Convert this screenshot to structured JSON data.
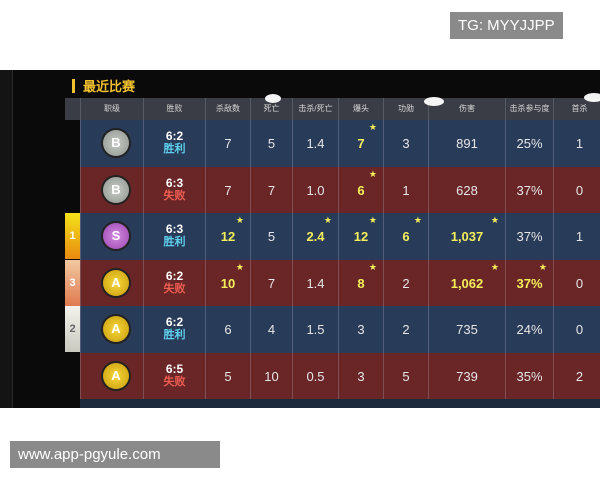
{
  "title": "最近比赛",
  "headers": [
    "职级",
    "胜败",
    "杀敌数",
    "死亡",
    "击杀/死亡",
    "爆头",
    "功勋",
    "伤害",
    "击杀参与度",
    "首杀"
  ],
  "colors": {
    "win_row": "#283b58",
    "loss_row": "#6a2627",
    "win_text": "#5fd0ee",
    "loss_text": "#ee5d52",
    "highlight": "#f4ee5a",
    "title": "#f2c12e"
  },
  "rows": [
    {
      "result": "win",
      "rank_badge": "",
      "tier": "B",
      "score": "6:2",
      "result_label": "胜利",
      "cells": [
        {
          "v": "7"
        },
        {
          "v": "5"
        },
        {
          "v": "1.4"
        },
        {
          "v": "7",
          "hl": true,
          "star": true
        },
        {
          "v": "3"
        },
        {
          "v": "891"
        },
        {
          "v": "25%"
        },
        {
          "v": "1"
        }
      ]
    },
    {
      "result": "loss",
      "rank_badge": "",
      "tier": "B",
      "score": "6:3",
      "result_label": "失败",
      "cells": [
        {
          "v": "7"
        },
        {
          "v": "7"
        },
        {
          "v": "1.0"
        },
        {
          "v": "6",
          "hl": true,
          "star": true
        },
        {
          "v": "1"
        },
        {
          "v": "628"
        },
        {
          "v": "37%"
        },
        {
          "v": "0"
        }
      ]
    },
    {
      "result": "win",
      "rank_badge": "1",
      "tier": "S",
      "score": "6:3",
      "result_label": "胜利",
      "cells": [
        {
          "v": "12",
          "hl": true,
          "star": true
        },
        {
          "v": "5"
        },
        {
          "v": "2.4",
          "hl": true,
          "star": true
        },
        {
          "v": "12",
          "hl": true,
          "star": true
        },
        {
          "v": "6",
          "hl": true,
          "star": true
        },
        {
          "v": "1,037",
          "hl": true,
          "star": true
        },
        {
          "v": "37%"
        },
        {
          "v": "1"
        }
      ]
    },
    {
      "result": "loss",
      "rank_badge": "3",
      "tier": "A",
      "score": "6:2",
      "result_label": "失败",
      "cells": [
        {
          "v": "10",
          "hl": true,
          "star": true
        },
        {
          "v": "7"
        },
        {
          "v": "1.4"
        },
        {
          "v": "8",
          "hl": true,
          "star": true
        },
        {
          "v": "2"
        },
        {
          "v": "1,062",
          "hl": true,
          "star": true
        },
        {
          "v": "37%",
          "hl": true,
          "star": true
        },
        {
          "v": "0"
        }
      ]
    },
    {
      "result": "win",
      "rank_badge": "2",
      "tier": "A",
      "score": "6:2",
      "result_label": "胜利",
      "cells": [
        {
          "v": "6"
        },
        {
          "v": "4"
        },
        {
          "v": "1.5"
        },
        {
          "v": "3"
        },
        {
          "v": "2"
        },
        {
          "v": "735"
        },
        {
          "v": "24%"
        },
        {
          "v": "0"
        }
      ]
    },
    {
      "result": "loss",
      "rank_badge": "",
      "tier": "A",
      "score": "6:5",
      "result_label": "失败",
      "cells": [
        {
          "v": "5"
        },
        {
          "v": "10"
        },
        {
          "v": "0.5"
        },
        {
          "v": "3"
        },
        {
          "v": "5"
        },
        {
          "v": "739"
        },
        {
          "v": "35%"
        },
        {
          "v": "2"
        }
      ]
    }
  ],
  "watermark_top": "TG: MYYJJPP",
  "watermark_bottom": "www.app-pgyule.com"
}
